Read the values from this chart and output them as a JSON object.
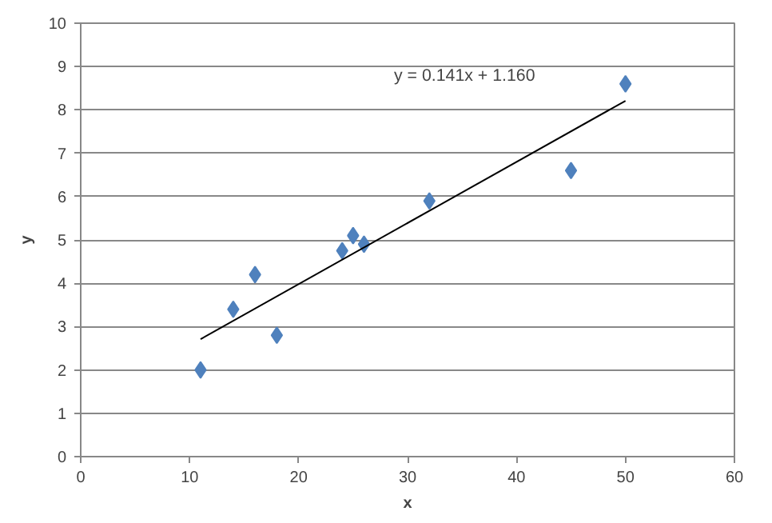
{
  "chart_data": {
    "type": "scatter",
    "xlabel": "x",
    "ylabel": "y",
    "series": [
      {
        "color": "#4f81bd",
        "marker": "diamond",
        "x": [
          11,
          14,
          16,
          18,
          24,
          25,
          26,
          32,
          45,
          50
        ],
        "values": [
          2.0,
          3.4,
          4.2,
          2.8,
          4.75,
          5.1,
          4.9,
          5.9,
          6.6,
          8.6
        ]
      },
      {
        "type": "line",
        "color": "#000000",
        "marker": "none",
        "line_style": "solid",
        "x": [
          11,
          50
        ],
        "values": [
          2.71,
          8.21
        ]
      }
    ],
    "annotations": [
      "y = 0.141x + 1.160"
    ],
    "xlim": [
      0,
      60
    ],
    "xticks": [
      0,
      10,
      20,
      30,
      40,
      50,
      60
    ],
    "ylim": [
      0,
      10
    ],
    "yticks": [
      0,
      1,
      2,
      3,
      4,
      5,
      6,
      7,
      8,
      9,
      10
    ],
    "grid": "y"
  }
}
